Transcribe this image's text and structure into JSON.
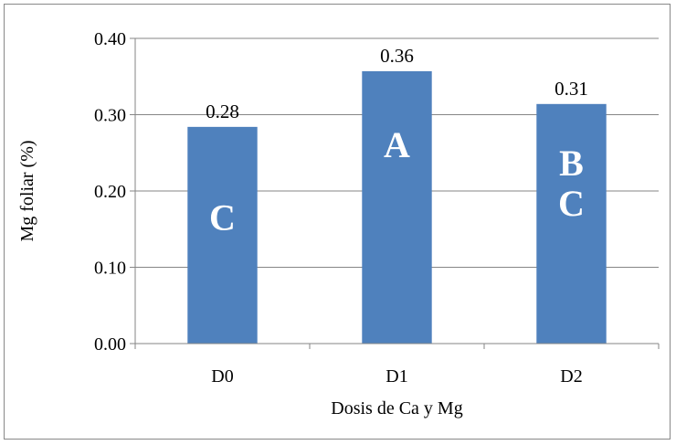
{
  "chart_data": {
    "type": "bar",
    "categories": [
      "D0",
      "D1",
      "D2"
    ],
    "values": [
      0.284,
      0.357,
      0.314
    ],
    "data_labels": [
      "0.28",
      "0.36",
      "0.31"
    ],
    "group_letters": [
      [
        "C"
      ],
      [
        "A"
      ],
      [
        "B",
        "C"
      ]
    ],
    "xlabel": "Dosis de Ca y Mg",
    "ylabel": "Mg foliar (%)",
    "ylim": [
      0,
      0.4
    ],
    "yticks": [
      0.0,
      0.1,
      0.2,
      0.3,
      0.4
    ],
    "ytick_labels": [
      "0.00",
      "0.10",
      "0.20",
      "0.30",
      "0.40"
    ],
    "grid": "horizontal",
    "legend": "none",
    "colors": {
      "bar": "#4F81BD",
      "grid": "#868686",
      "axis": "#868686",
      "letters": "#FFFFFF"
    }
  }
}
